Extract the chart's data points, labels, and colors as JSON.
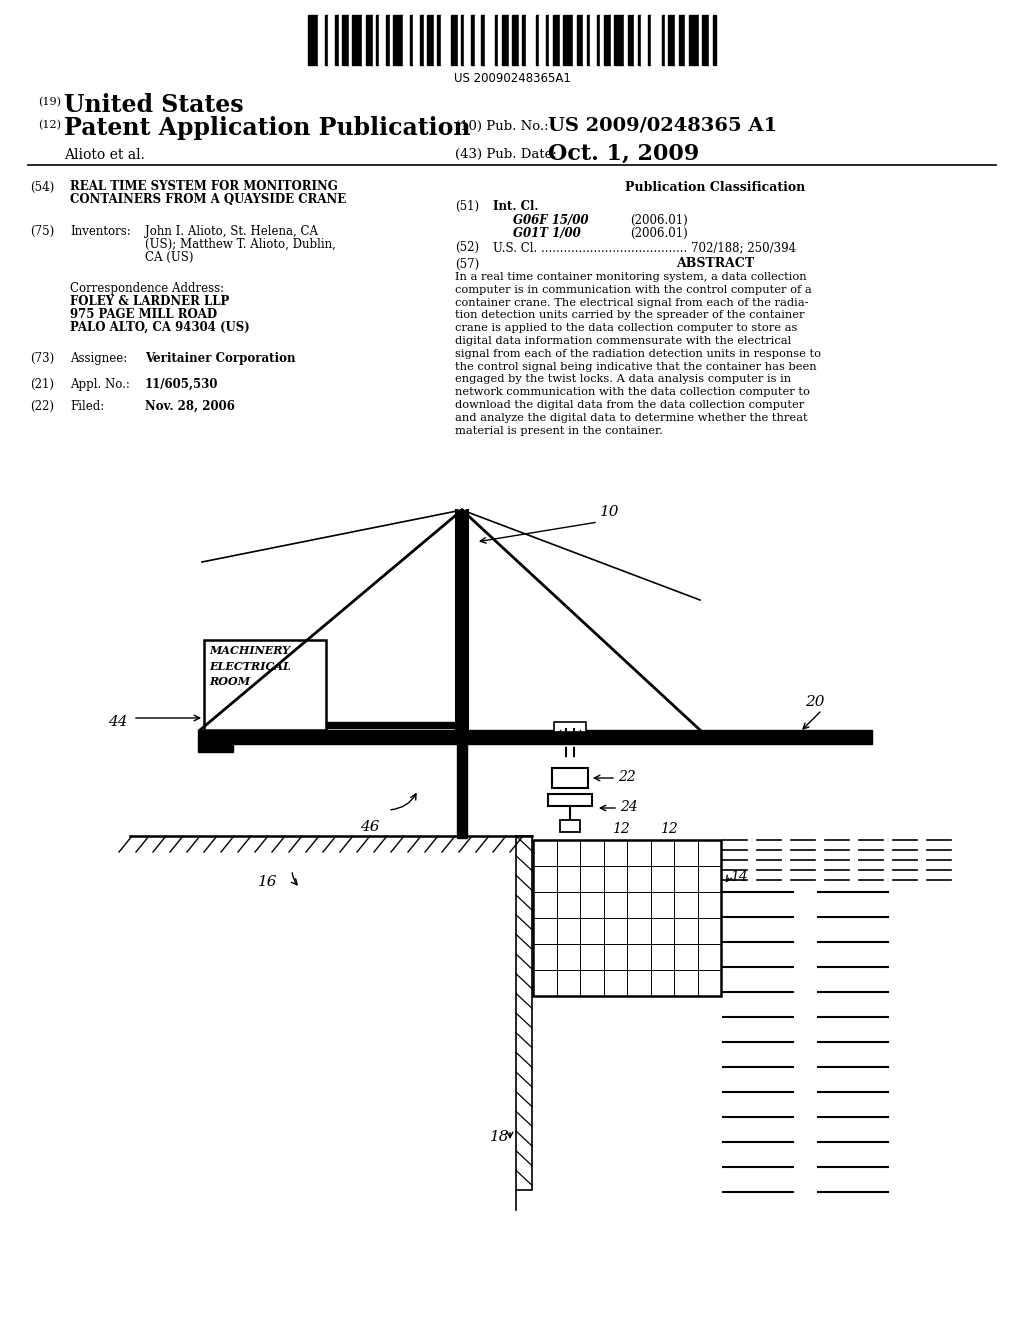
{
  "bg_color": "#ffffff",
  "barcode_text": "US 20090248365A1",
  "title_line1": "United States",
  "title_line2": "Patent Application Publication",
  "pub_no_label": "(10) Pub. No.:",
  "pub_no_value": "US 2009/0248365 A1",
  "authors": "Alioto et al.",
  "pub_date_label": "(43) Pub. Date:",
  "pub_date_value": "Oct. 1, 2009",
  "field54_text": "REAL TIME SYSTEM FOR MONITORING\nCONTAINERS FROM A QUAYSIDE CRANE",
  "field75_label": "Inventors:",
  "field75_text1": "John I. Alioto, St. Helena, CA",
  "field75_text2": "(US); Matthew T. Alioto, Dublin,",
  "field75_text3": "CA (US)",
  "corr_label": "Correspondence Address:",
  "corr_line1": "FOLEY & LARDNER LLP",
  "corr_line2": "975 PAGE MILL ROAD",
  "corr_line3": "PALO ALTO, CA 94304 (US)",
  "field73_label": "Assignee:",
  "field73_text": "Veritainer Corporation",
  "field21_label": "Appl. No.:",
  "field21_text": "11/605,530",
  "field22_label": "Filed:",
  "field22_text": "Nov. 28, 2006",
  "pub_class_title": "Publication Classification",
  "field51_label": "Int. Cl.",
  "field51_class1": "G06F 15/00",
  "field51_year1": "(2006.01)",
  "field51_class2": "G01T 1/00",
  "field51_year2": "(2006.01)",
  "field52_text": "U.S. Cl. ....................................... 702/188; 250/394",
  "field57_label": "ABSTRACT",
  "abstract_text": "In a real time container monitoring system, a data collection\ncomputer is in communication with the control computer of a\ncontainer crane. The electrical signal from each of the radia-\ntion detection units carried by the spreader of the container\ncrane is applied to the data collection computer to store as\ndigital data information commensurate with the electrical\nsignal from each of the radiation detection units in response to\nthe control signal being indicative that the container has been\nengaged by the twist locks. A data analysis computer is in\nnetwork communication with the data collection computer to\ndownload the digital data from the data collection computer\nand analyze the digital data to determine whether the threat\nmaterial is present in the container."
}
